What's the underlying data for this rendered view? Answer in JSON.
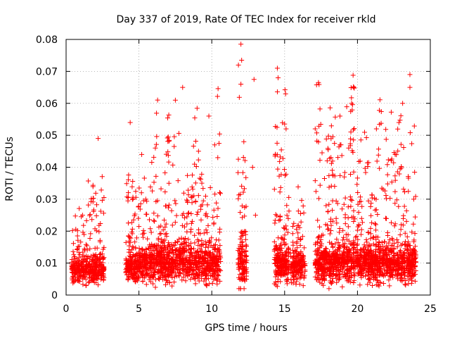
{
  "chart_data": {
    "type": "scatter",
    "title": "Day 337 of 2019, Rate Of TEC Index for receiver rkld",
    "xlabel": "GPS time / hours",
    "ylabel": "ROTI / TECUs",
    "xlim": [
      0,
      25
    ],
    "ylim": [
      0,
      0.08
    ],
    "xticks": [
      0,
      5,
      10,
      15,
      20,
      25
    ],
    "yticks": [
      0,
      0.01,
      0.02,
      0.03,
      0.04,
      0.05,
      0.06,
      0.07,
      0.08
    ],
    "xtick_labels": [
      "0",
      "5",
      "10",
      "15",
      "20",
      "25"
    ],
    "ytick_labels": [
      "0",
      "0.01",
      "0.02",
      "0.03",
      "0.04",
      "0.05",
      "0.06",
      "0.07",
      "0.08"
    ],
    "grid": true,
    "marker": "+",
    "color": "#ff0000",
    "clusters": [
      {
        "x_start": 0.4,
        "x_end": 2.6,
        "n": 420,
        "base": 0.008,
        "spread": 0.004,
        "peak": 0.049
      },
      {
        "x_start": 4.1,
        "x_end": 5.0,
        "n": 200,
        "base": 0.008,
        "spread": 0.004,
        "peak": 0.054
      },
      {
        "x_start": 5.0,
        "x_end": 10.6,
        "n": 1100,
        "base": 0.01,
        "spread": 0.006,
        "peak": 0.065
      },
      {
        "x_start": 11.8,
        "x_end": 12.4,
        "n": 140,
        "base": 0.01,
        "spread": 0.008,
        "peak": 0.078
      },
      {
        "x_start": 14.3,
        "x_end": 15.3,
        "n": 250,
        "base": 0.01,
        "spread": 0.006,
        "peak": 0.071
      },
      {
        "x_start": 15.4,
        "x_end": 16.4,
        "n": 200,
        "base": 0.009,
        "spread": 0.005,
        "peak": 0.043
      },
      {
        "x_start": 17.1,
        "x_end": 20.0,
        "n": 650,
        "base": 0.01,
        "spread": 0.006,
        "peak": 0.069
      },
      {
        "x_start": 20.0,
        "x_end": 24.0,
        "n": 850,
        "base": 0.01,
        "spread": 0.006,
        "peak": 0.069
      }
    ],
    "highlight_points": [
      {
        "x": 12.0,
        "y": 0.0785
      },
      {
        "x": 12.05,
        "y": 0.0735
      },
      {
        "x": 12.0,
        "y": 0.066
      },
      {
        "x": 12.9,
        "y": 0.0675
      },
      {
        "x": 14.5,
        "y": 0.071
      },
      {
        "x": 14.55,
        "y": 0.068
      },
      {
        "x": 19.7,
        "y": 0.0688
      },
      {
        "x": 19.75,
        "y": 0.065
      },
      {
        "x": 23.6,
        "y": 0.069
      },
      {
        "x": 23.6,
        "y": 0.065
      },
      {
        "x": 8.0,
        "y": 0.065
      },
      {
        "x": 7.5,
        "y": 0.061
      },
      {
        "x": 9.8,
        "y": 0.056
      },
      {
        "x": 4.4,
        "y": 0.054
      },
      {
        "x": 2.2,
        "y": 0.049
      },
      {
        "x": 18.8,
        "y": 0.056
      },
      {
        "x": 19.6,
        "y": 0.06
      },
      {
        "x": 23.1,
        "y": 0.06
      },
      {
        "x": 21.3,
        "y": 0.052
      },
      {
        "x": 15.1,
        "y": 0.052
      },
      {
        "x": 12.2,
        "y": 0.048
      },
      {
        "x": 10.2,
        "y": 0.047
      },
      {
        "x": 12.8,
        "y": 0.04
      },
      {
        "x": 13.0,
        "y": 0.025
      }
    ]
  }
}
